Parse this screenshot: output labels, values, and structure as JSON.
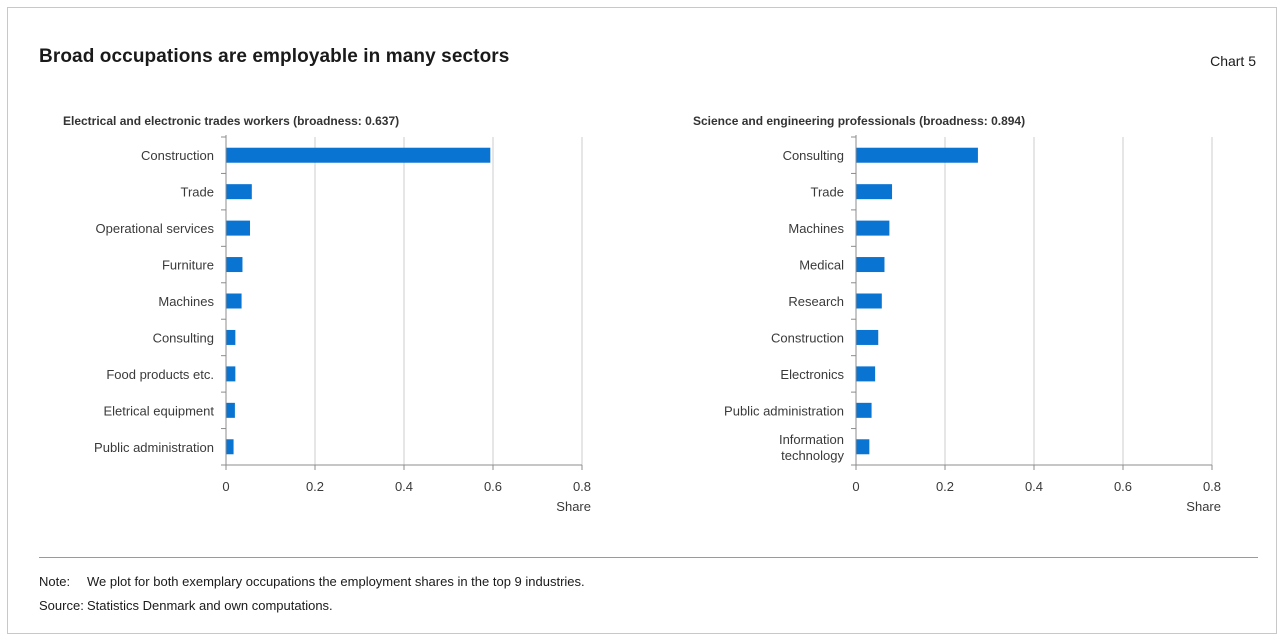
{
  "title": "Broad occupations are employable in many sectors",
  "chart_label": "Chart 5",
  "colors": {
    "bar": "#0a74d2",
    "grid": "#cccccc",
    "axis": "#8c8c8c",
    "text": "#3a3a3a"
  },
  "chart_data": [
    {
      "type": "bar",
      "orientation": "horizontal",
      "title": "Electrical and electronic trades workers (broadness: 0.637)",
      "xlabel": "Share",
      "categories": [
        "Construction",
        "Trade",
        "Operational services",
        "Furniture",
        "Machines",
        "Consulting",
        "Food products etc.",
        "Eletrical equipment",
        "Public administration"
      ],
      "values": [
        0.594,
        0.058,
        0.054,
        0.037,
        0.035,
        0.021,
        0.021,
        0.02,
        0.017
      ],
      "xlim": [
        0,
        0.8
      ],
      "xticks": [
        "0",
        "0.2",
        "0.4",
        "0.6",
        "0.8"
      ],
      "xtick_values": [
        0,
        0.2,
        0.4,
        0.6,
        0.8
      ],
      "grid": "vertical"
    },
    {
      "type": "bar",
      "orientation": "horizontal",
      "title": "Science and engineering professionals (broadness: 0.894)",
      "xlabel": "Share",
      "categories": [
        "Consulting",
        "Trade",
        "Machines",
        "Medical",
        "Research",
        "Construction",
        "Electronics",
        "Public administration",
        "Information technology"
      ],
      "category_lines": [
        [
          "Consulting"
        ],
        [
          "Trade"
        ],
        [
          "Machines"
        ],
        [
          "Medical"
        ],
        [
          "Research"
        ],
        [
          "Construction"
        ],
        [
          "Electronics"
        ],
        [
          "Public administration"
        ],
        [
          "Information",
          "technology"
        ]
      ],
      "values": [
        0.274,
        0.081,
        0.075,
        0.064,
        0.058,
        0.05,
        0.043,
        0.035,
        0.03
      ],
      "xlim": [
        0,
        0.8
      ],
      "xticks": [
        "0",
        "0.2",
        "0.4",
        "0.6",
        "0.8"
      ],
      "xtick_values": [
        0,
        0.2,
        0.4,
        0.6,
        0.8
      ],
      "grid": "vertical"
    }
  ],
  "footer": {
    "note_label": "Note:",
    "note_text": "We plot for both exemplary occupations the employment shares in the top 9 industries.",
    "source_label": "Source:",
    "source_text": "Statistics Denmark and own computations."
  }
}
